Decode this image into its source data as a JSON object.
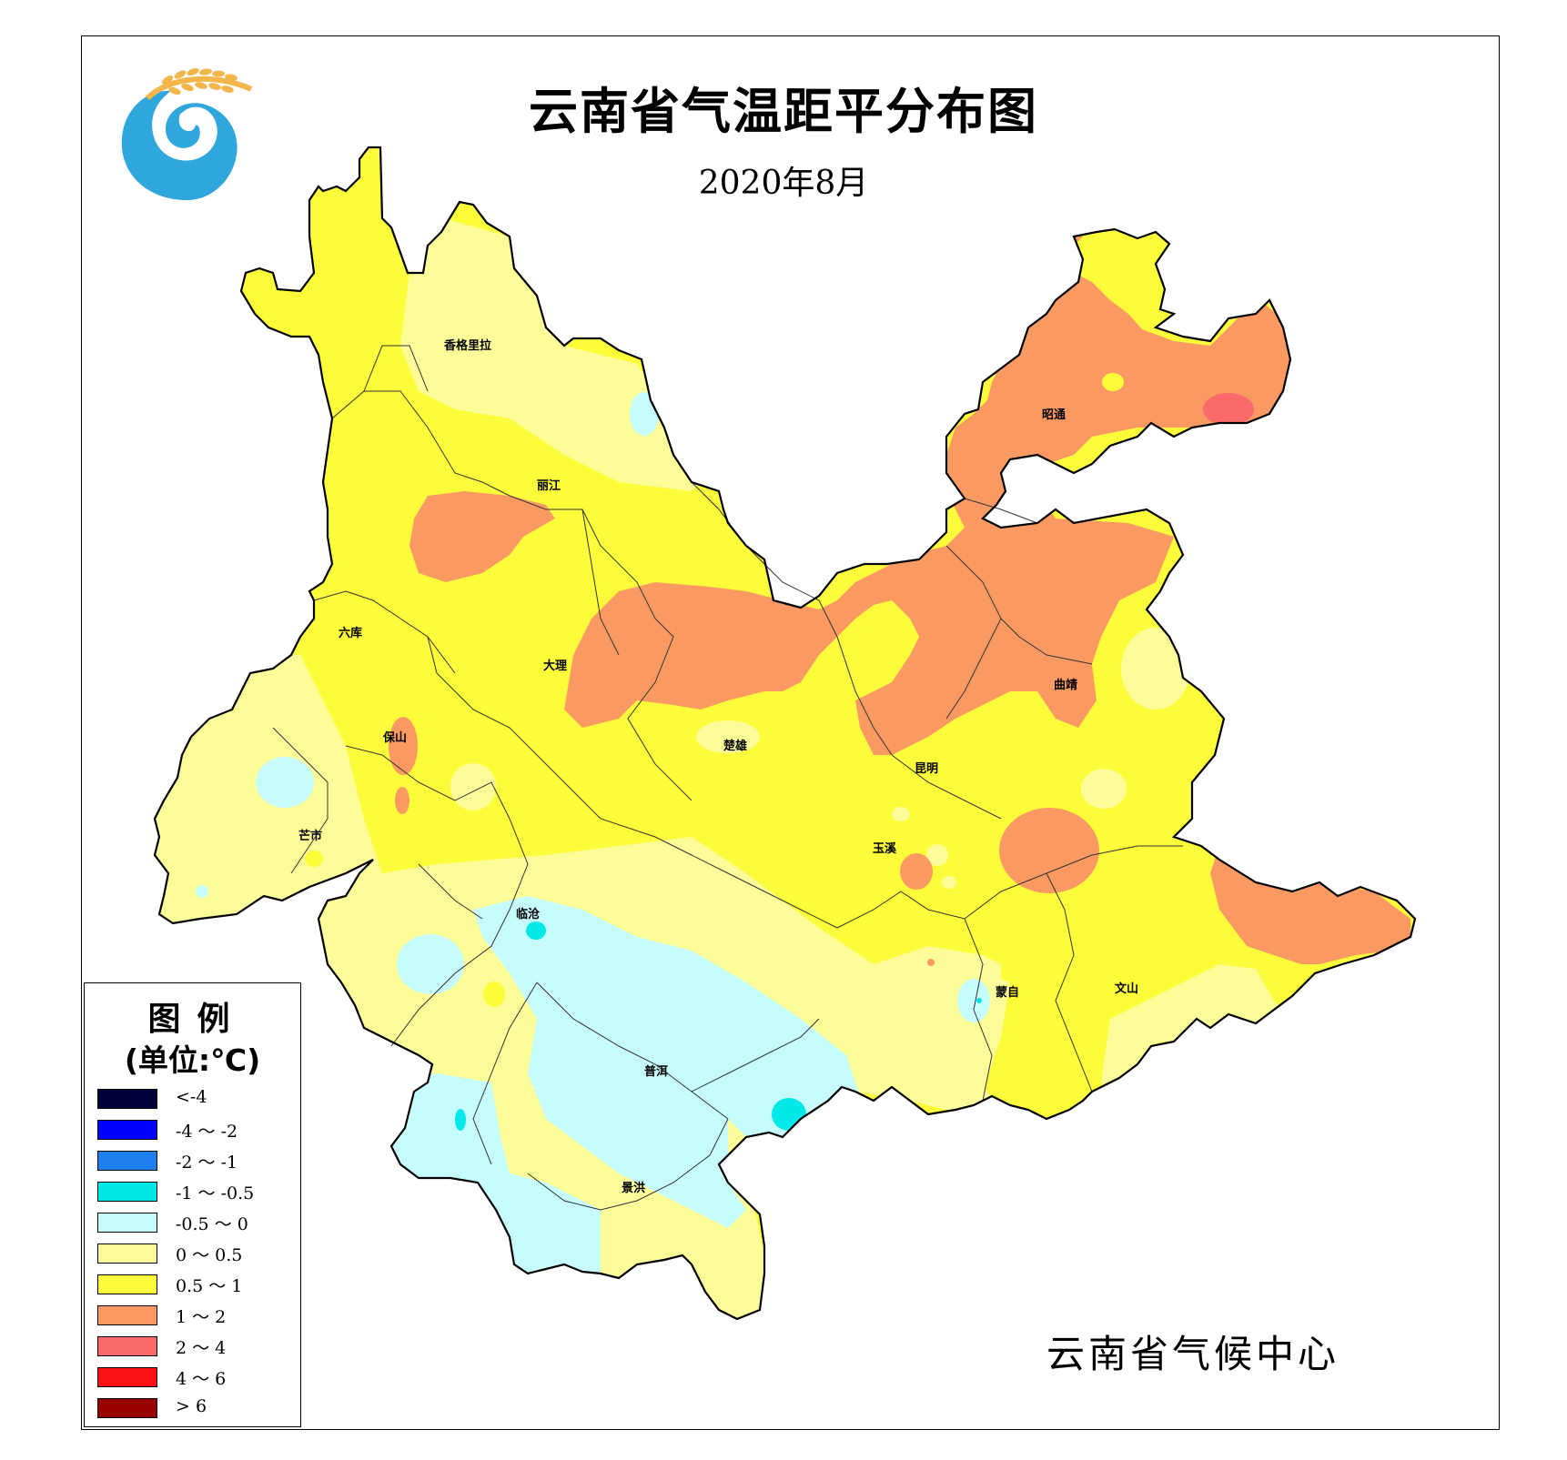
{
  "title": "云南省气温距平分布图",
  "subtitle": "2020年8月",
  "producer": "云南省气候中心",
  "legend": {
    "title": "图例",
    "unit": "(单位:℃)",
    "items": [
      {
        "label": "<-4",
        "color": "#00003a"
      },
      {
        "label": "-4 ～ -2",
        "color": "#0000ff"
      },
      {
        "label": "-2 ～ -1",
        "color": "#1f7fef"
      },
      {
        "label": "-1 ～ -0.5",
        "color": "#00e8e8"
      },
      {
        "label": "-0.5 ～ 0",
        "color": "#c6fcfc"
      },
      {
        "label": "0 ～ 0.5",
        "color": "#fcfc98"
      },
      {
        "label": "0.5 ～ 1",
        "color": "#fcfc3a"
      },
      {
        "label": "1 ～ 2",
        "color": "#fa9a62"
      },
      {
        "label": "2 ～ 4",
        "color": "#fa6a6a"
      },
      {
        "label": "4 ～ 6",
        "color": "#fa1212"
      },
      {
        "label": "> 6",
        "color": "#980000"
      }
    ]
  },
  "cities": {
    "shangrila": "香格里拉",
    "lijiang": "丽江",
    "zhaotong": "昭通",
    "liuku": "六库",
    "dali": "大理",
    "qujing": "曲靖",
    "baoshan": "保山",
    "chuxiong": "楚雄",
    "kunming": "昆明",
    "mangshi": "芒市",
    "yuxi": "玉溪",
    "lincang": "临沧",
    "mengzi": "蒙自",
    "wenshan": "文山",
    "puer": "普洱",
    "jinghong": "景洪"
  }
}
